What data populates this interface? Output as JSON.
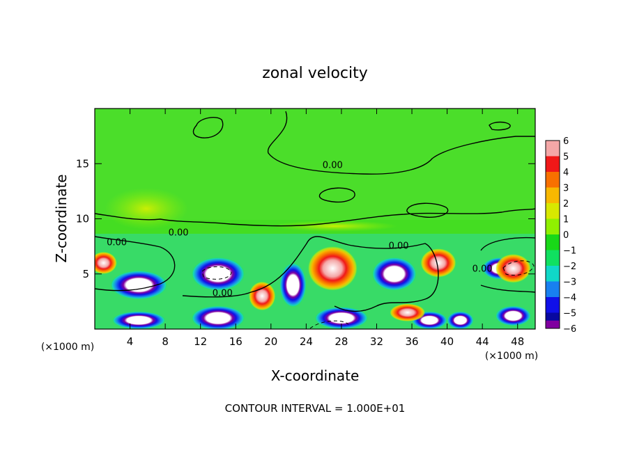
{
  "chart_data": {
    "type": "heatmap",
    "title": "zonal velocity",
    "xlabel": "X-coordinate",
    "ylabel": "Z-coordinate",
    "x_unit_left": "(×1000 m)",
    "x_unit_right": "(×1000 m)",
    "footer": "CONTOUR INTERVAL = 1.000E+01",
    "xlim": [
      0,
      50
    ],
    "ylim": [
      0,
      20
    ],
    "x_ticks": [
      4,
      8,
      12,
      16,
      20,
      24,
      28,
      32,
      36,
      40,
      44,
      48
    ],
    "y_ticks": [
      5,
      10,
      15
    ],
    "colorbar": {
      "levels": [
        6,
        5,
        4,
        3,
        2,
        1,
        0,
        -1,
        -2,
        -3,
        -4,
        -5,
        -6
      ],
      "colors": [
        "#f4a7a7",
        "#f01818",
        "#f87000",
        "#f8b800",
        "#d8e800",
        "#90f000",
        "#18d818",
        "#10e060",
        "#10d8c8",
        "#1880f0",
        "#1010e8",
        "#0808a0",
        "#8000a0"
      ]
    },
    "contour_labels": [
      {
        "text": "0.00",
        "x": 27,
        "z": 14.6
      },
      {
        "text": "0.00",
        "x": 2.5,
        "z": 7.6
      },
      {
        "text": "0.00",
        "x": 9.5,
        "z": 8.5
      },
      {
        "text": "0.00",
        "x": 14.5,
        "z": 3.0
      },
      {
        "text": "0.00",
        "x": 34.5,
        "z": 7.3
      },
      {
        "text": "0.00",
        "x": 44.0,
        "z": 5.2
      }
    ],
    "features": [
      {
        "kind": "jet",
        "sign": "negative",
        "x": 5.0,
        "z": 4.0,
        "rx": 3.2,
        "rz": 1.3
      },
      {
        "kind": "jet",
        "sign": "negative",
        "x": 14.0,
        "z": 5.0,
        "rx": 3.0,
        "rz": 1.5
      },
      {
        "kind": "jet",
        "sign": "negative",
        "x": 34.0,
        "z": 5.0,
        "rx": 2.5,
        "rz": 1.5
      },
      {
        "kind": "jet",
        "sign": "negative",
        "x": 14.0,
        "z": 1.0,
        "rx": 3.0,
        "rz": 1.1
      },
      {
        "kind": "jet",
        "sign": "negative",
        "x": 28.0,
        "z": 1.0,
        "rx": 3.0,
        "rz": 1.0
      },
      {
        "kind": "jet",
        "sign": "negative",
        "x": 5.0,
        "z": 0.8,
        "rx": 3.0,
        "rz": 0.8
      },
      {
        "kind": "jet",
        "sign": "negative",
        "x": 38.0,
        "z": 0.8,
        "rx": 2.0,
        "rz": 0.8
      },
      {
        "kind": "jet",
        "sign": "negative",
        "x": 41.5,
        "z": 0.8,
        "rx": 1.5,
        "rz": 0.8
      },
      {
        "kind": "jet",
        "sign": "negative",
        "x": 47.5,
        "z": 1.2,
        "rx": 2.0,
        "rz": 0.9
      },
      {
        "kind": "jet",
        "sign": "negative",
        "x": 22.5,
        "z": 4.0,
        "rx": 1.5,
        "rz": 2.0
      },
      {
        "kind": "jet",
        "sign": "negative",
        "x": 46.0,
        "z": 5.5,
        "rx": 2.0,
        "rz": 1.0
      },
      {
        "kind": "jet",
        "sign": "positive",
        "x": 27.0,
        "z": 5.5,
        "rx": 2.8,
        "rz": 2.0
      },
      {
        "kind": "jet",
        "sign": "positive",
        "x": 39.0,
        "z": 6.0,
        "rx": 2.0,
        "rz": 1.3
      },
      {
        "kind": "jet",
        "sign": "positive",
        "x": 1.0,
        "z": 6.0,
        "rx": 1.5,
        "rz": 1.0
      },
      {
        "kind": "jet",
        "sign": "positive",
        "x": 19.0,
        "z": 3.0,
        "rx": 1.5,
        "rz": 1.3
      },
      {
        "kind": "jet",
        "sign": "positive",
        "x": 35.5,
        "z": 1.5,
        "rx": 2.0,
        "rz": 0.8
      },
      {
        "kind": "jet",
        "sign": "positive",
        "x": 47.5,
        "z": 5.5,
        "rx": 2.0,
        "rz": 1.3
      }
    ]
  }
}
